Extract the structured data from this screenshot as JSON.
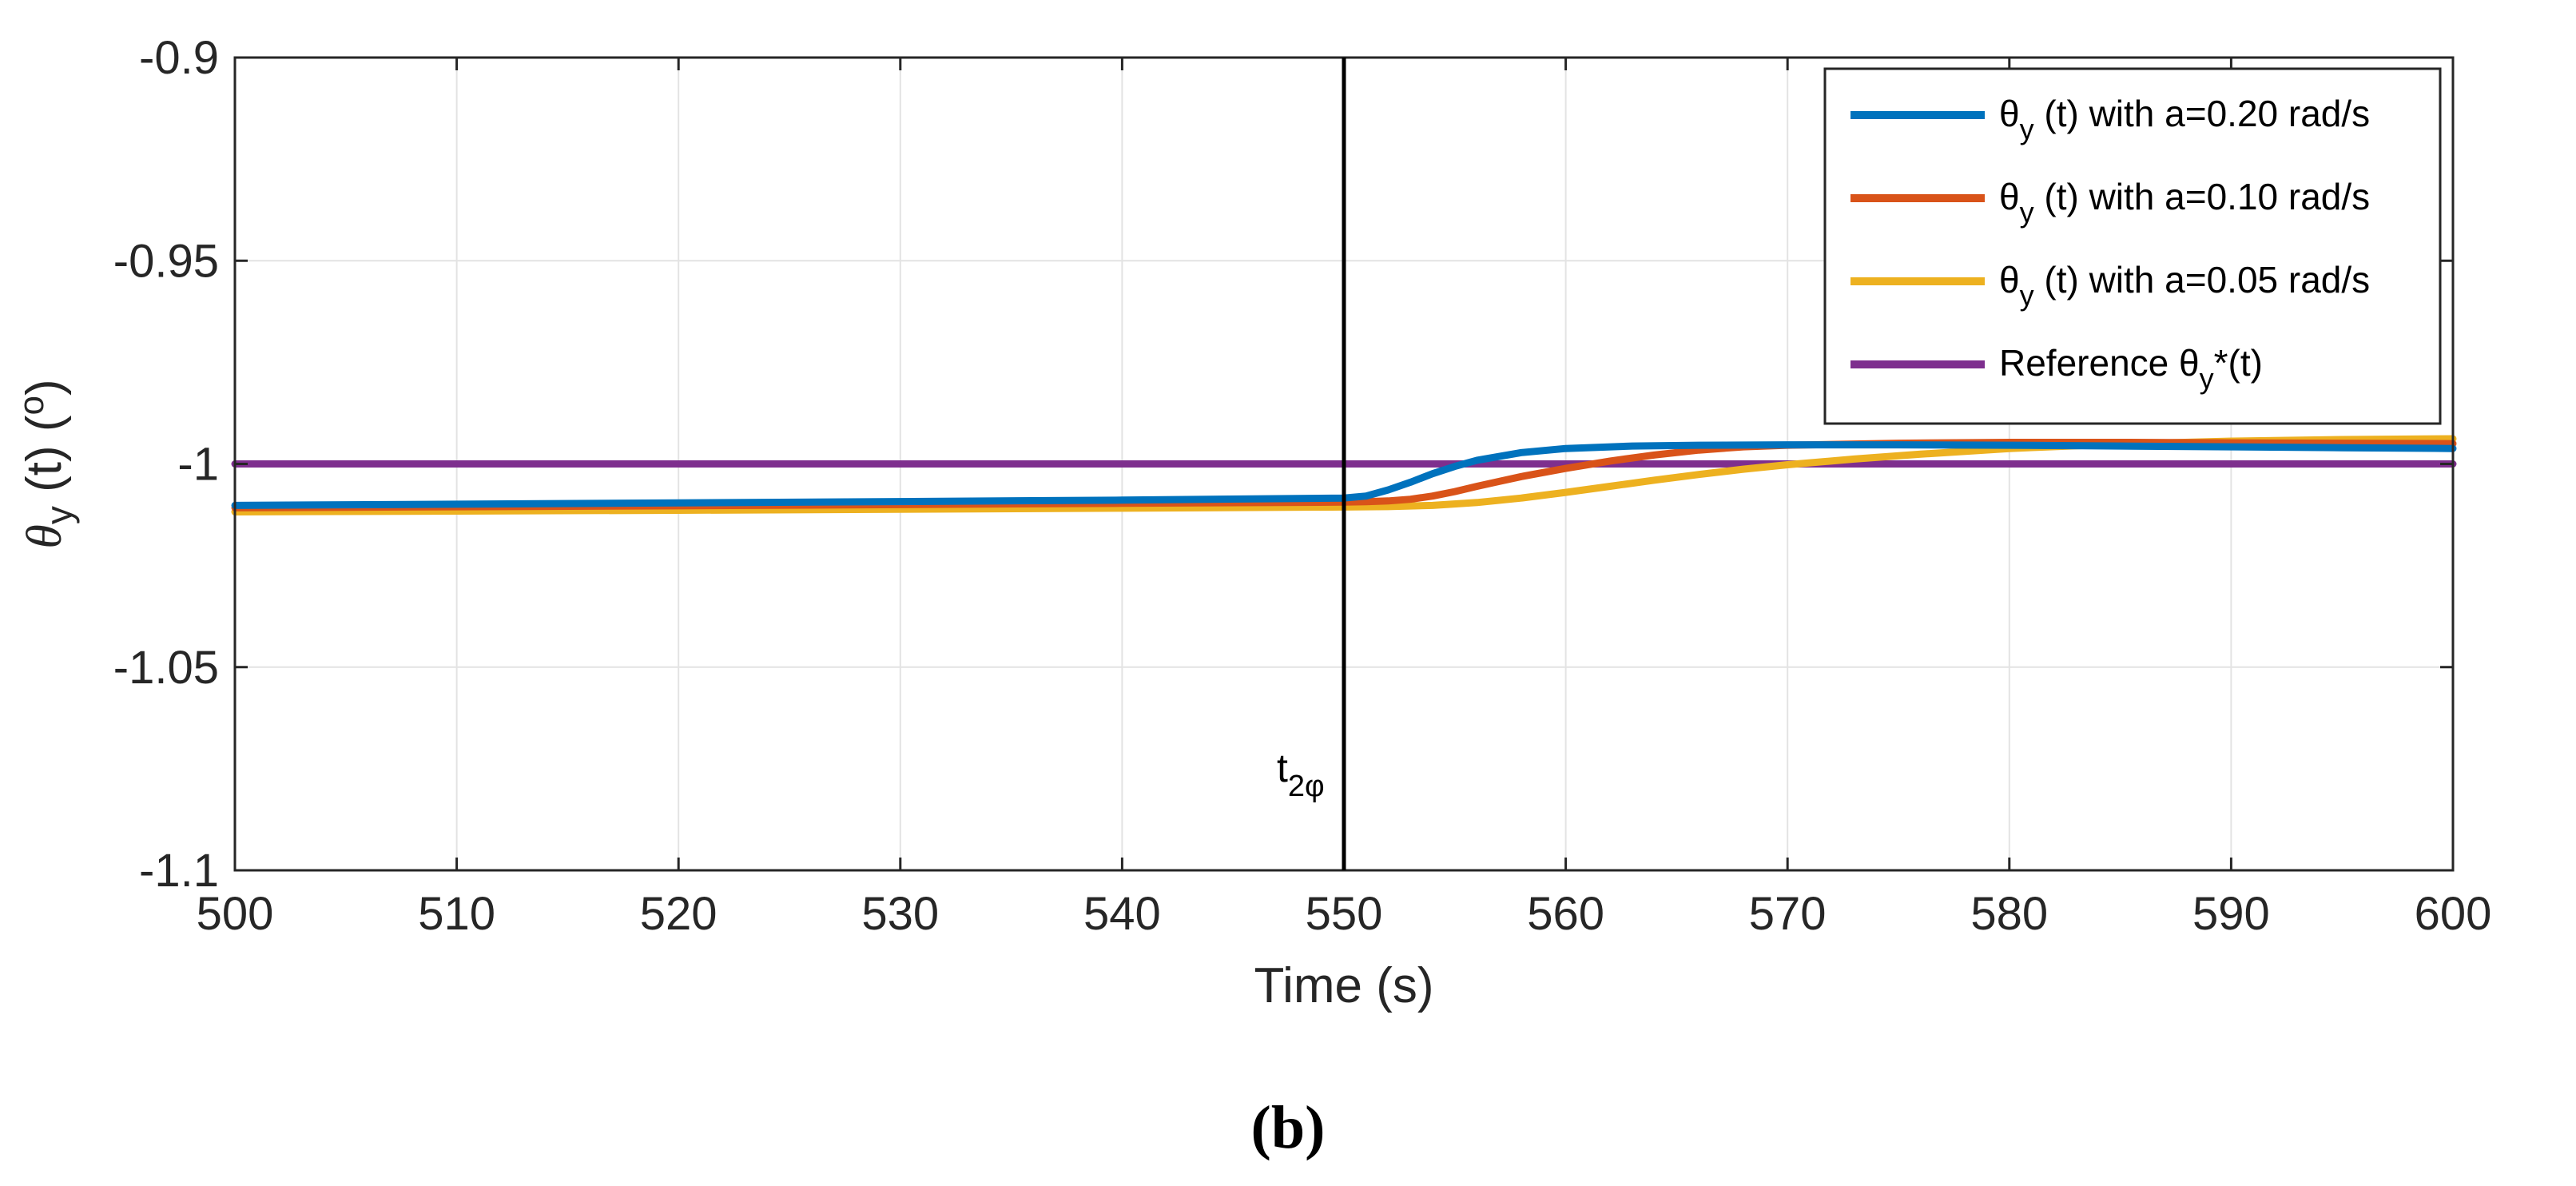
{
  "chart_data": {
    "type": "line",
    "subfigure_label": "(b)",
    "xlabel": "Time (s)",
    "ylabel": {
      "theta": "θ",
      "sub": "y",
      "rest": " (t)  (",
      "unit": "o",
      "close": ")"
    },
    "xlim": [
      500,
      600
    ],
    "ylim": [
      -1.1,
      -0.9
    ],
    "xticks": [
      500,
      510,
      520,
      530,
      540,
      550,
      560,
      570,
      580,
      590,
      600
    ],
    "xtick_labels": [
      "500",
      "510",
      "520",
      "530",
      "540",
      "550",
      "560",
      "570",
      "580",
      "590",
      "600"
    ],
    "yticks": [
      -1.1,
      -1.05,
      -1.0,
      -0.95,
      -0.9
    ],
    "ytick_labels": [
      "-1.1",
      "-1.05",
      "-1",
      "-0.95",
      "-0.9"
    ],
    "grid": true,
    "vertical_marker": {
      "x": 550,
      "label_main": "t",
      "label_sub": "2φ",
      "color": "#000000"
    },
    "legend_position": "top-right",
    "series": [
      {
        "name": "θy (t) with a=0.20 rad/s",
        "legend": {
          "pre": "θ",
          "sub": "y",
          "post": " (t) with a=0.20 rad/s"
        },
        "color": "#0072BD",
        "x": [
          500,
          520,
          540,
          550,
          551,
          552,
          553,
          554,
          555,
          556,
          558,
          560,
          563,
          566,
          570,
          575,
          580,
          585,
          590,
          595,
          600
        ],
        "y": [
          -1.0102,
          -1.0096,
          -1.0089,
          -1.0084,
          -1.0079,
          -1.0064,
          -1.0045,
          -1.0024,
          -1.0006,
          -0.9991,
          -0.9972,
          -0.9962,
          -0.9956,
          -0.9954,
          -0.9953,
          -0.9953,
          -0.9954,
          -0.9956,
          -0.9958,
          -0.996,
          -0.9962
        ]
      },
      {
        "name": "θy (t) with a=0.10 rad/s",
        "legend": {
          "pre": "θ",
          "sub": "y",
          "post": " (t) with a=0.10 rad/s"
        },
        "color": "#D95319",
        "x": [
          500,
          520,
          540,
          550,
          551,
          552,
          553,
          554,
          555,
          556,
          557,
          558,
          560,
          562,
          564,
          566,
          568,
          570,
          575,
          580,
          585,
          590,
          595,
          600
        ],
        "y": [
          -1.0108,
          -1.0103,
          -1.0097,
          -1.0094,
          -1.0093,
          -1.0091,
          -1.0087,
          -1.0079,
          -1.0068,
          -1.0055,
          -1.0043,
          -1.0031,
          -1.0011,
          -0.9993,
          -0.9978,
          -0.9966,
          -0.9958,
          -0.9954,
          -0.9949,
          -0.9947,
          -0.9947,
          -0.9948,
          -0.9949,
          -0.995
        ]
      },
      {
        "name": "θy (t) with a=0.05 rad/s",
        "legend": {
          "pre": "θ",
          "sub": "y",
          "post": " (t) with a=0.05 rad/s"
        },
        "color": "#EDB120",
        "x": [
          500,
          520,
          540,
          550,
          552,
          554,
          556,
          558,
          560,
          562,
          564,
          566,
          568,
          570,
          573,
          576,
          580,
          585,
          590,
          595,
          600
        ],
        "y": [
          -1.0118,
          -1.0114,
          -1.0109,
          -1.0106,
          -1.0105,
          -1.0102,
          -1.0095,
          -1.0084,
          -1.007,
          -1.0055,
          -1.004,
          -1.0026,
          -1.0013,
          -1.0002,
          -0.9988,
          -0.9976,
          -0.9962,
          -0.9951,
          -0.9944,
          -0.994,
          -0.9938
        ]
      },
      {
        "name": "Reference θy*(t)",
        "legend": {
          "pre": "Reference θ",
          "sub": "y",
          "post": "*(t)"
        },
        "color": "#7E2F8E",
        "x": [
          500,
          600
        ],
        "y": [
          -1.0,
          -1.0
        ]
      }
    ]
  }
}
